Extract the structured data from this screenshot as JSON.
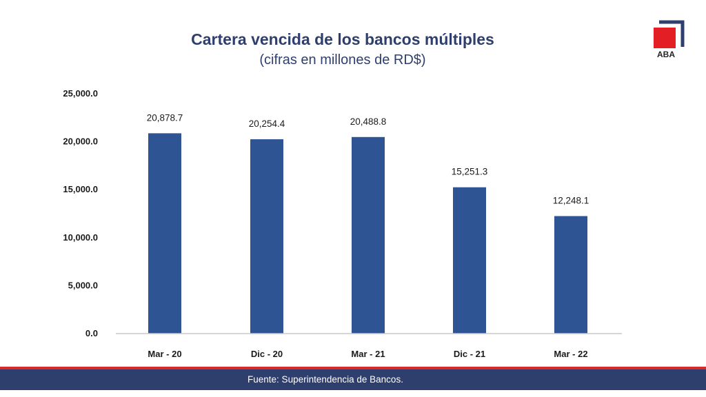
{
  "header": {
    "title": "Cartera vencida de los bancos múltiples",
    "subtitle": "(cifras en millones de RD$)"
  },
  "logo": {
    "text": "ABA",
    "red": "#e31e24",
    "navy": "#2e3f6e"
  },
  "colors": {
    "bar": "#2e5494",
    "footer": "#2e3f6e",
    "footer_accent": "#d62b2b"
  },
  "footer": {
    "source": "Fuente: Superintendencia de Bancos."
  },
  "chart_data": {
    "type": "bar",
    "title": "Cartera vencida de los bancos múltiples",
    "subtitle": "(cifras en millones de RD$)",
    "categories": [
      "Mar - 20",
      "Dic - 20",
      "Mar - 21",
      "Dic - 21",
      "Mar - 22"
    ],
    "values": [
      20878.7,
      20254.4,
      20488.8,
      15251.3,
      12248.1
    ],
    "value_labels": [
      "20,878.7",
      "20,254.4",
      "20,488.8",
      "15,251.3",
      "12,248.1"
    ],
    "ylim": [
      0,
      25000
    ],
    "yticks": [
      0,
      5000,
      10000,
      15000,
      20000,
      25000
    ],
    "ytick_labels": [
      "0.0",
      "5,000.0",
      "10,000.0",
      "15,000.0",
      "20,000.0",
      "25,000.0"
    ],
    "grid": false,
    "legend": "none"
  }
}
